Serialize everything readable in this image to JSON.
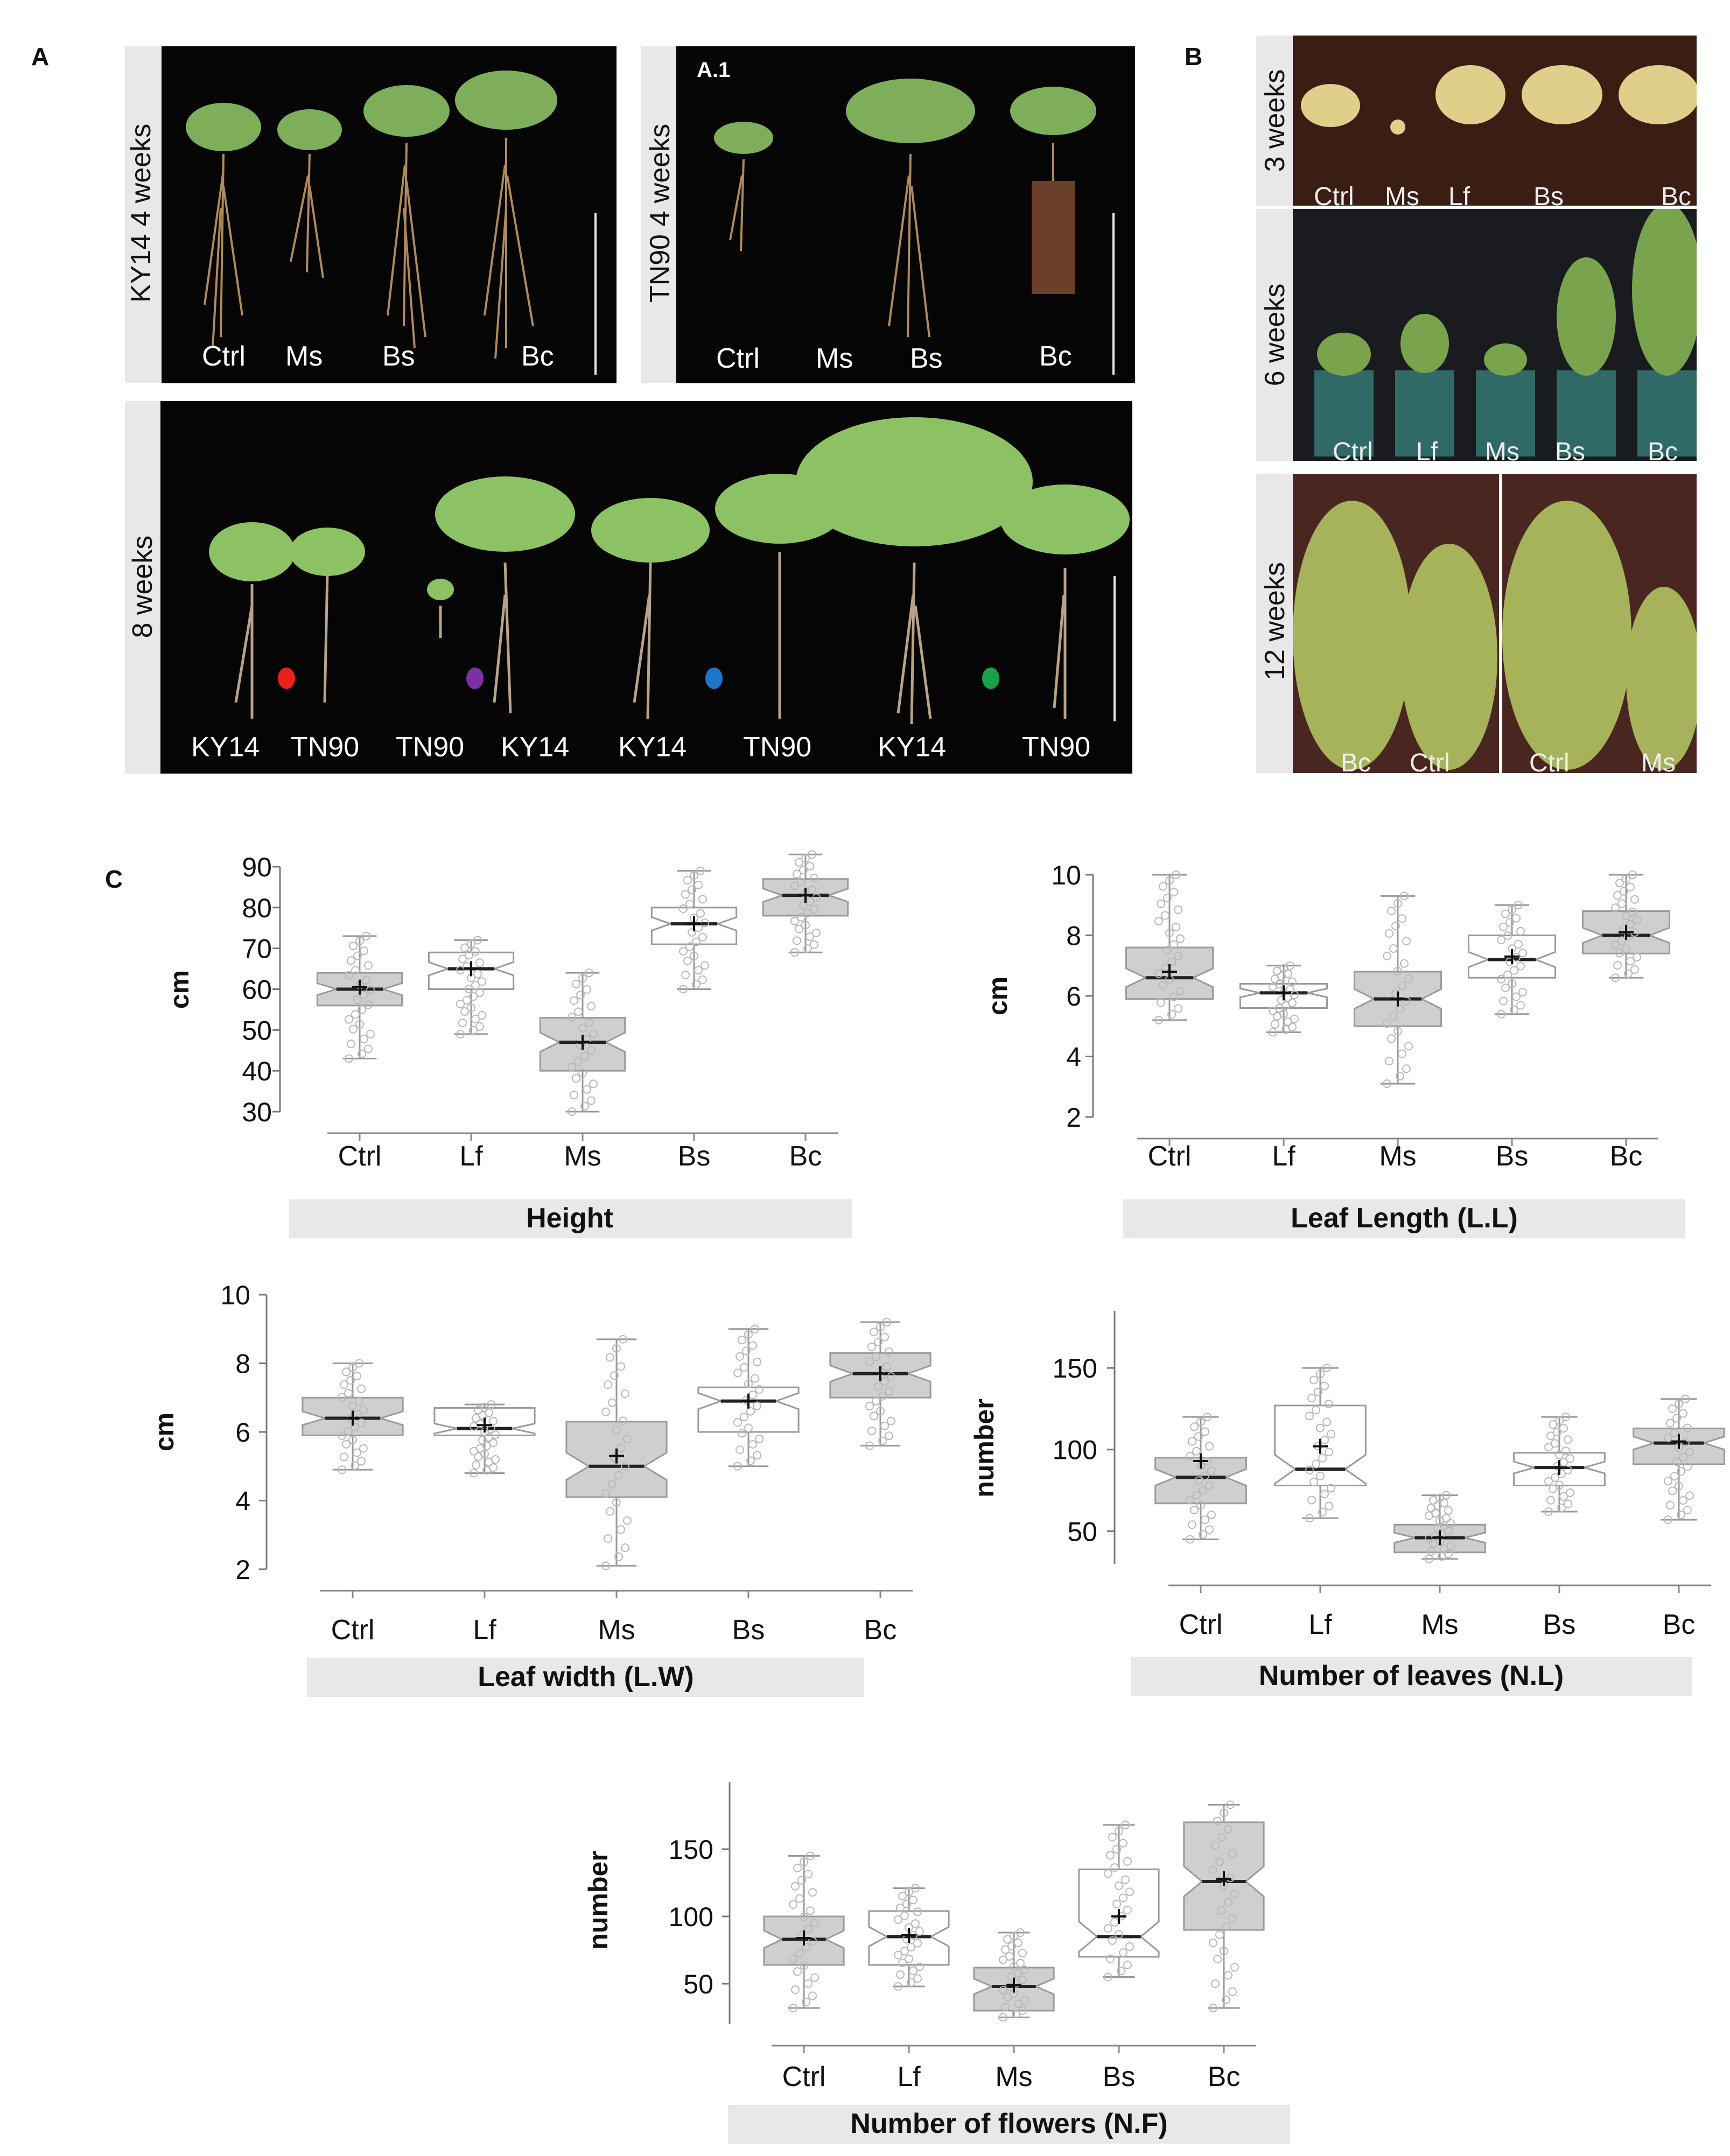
{
  "panelA": {
    "letter": "A",
    "ky14_label": "KY14  4 weeks",
    "ky14_plants": [
      "Ctrl",
      "Ms",
      "Bs",
      "Bc"
    ],
    "tn90_label": "TN90  4 weeks",
    "tn90_tag": "A.1",
    "tn90_plants": [
      "Ctrl",
      "Ms",
      "Bs",
      "Bc"
    ],
    "w8_label": "8 weeks",
    "w8_plants": [
      "KY14",
      "TN90",
      "TN90",
      "KY14",
      "KY14",
      "TN90",
      "KY14",
      "TN90"
    ],
    "dot_colors": [
      "#e8201c",
      "#7d2fa8",
      "#1f74c6",
      "#17a24a"
    ]
  },
  "panelB": {
    "letter": "B",
    "w3_label": "3 weeks",
    "w3_plants": [
      "Ctrl",
      "Ms",
      "Lf",
      "Bs",
      "Bc"
    ],
    "w6_label": "6 weeks",
    "w6_plants": [
      "Ctrl",
      "Lf",
      "Ms",
      "Bs",
      "Bc"
    ],
    "w12_label": "12 weeks",
    "w12_plants": [
      "Bc",
      "Ctrl",
      "Ctrl",
      "Ms"
    ]
  },
  "panelC": {
    "letter": "C"
  },
  "chart_data": [
    {
      "type": "boxplot",
      "title": "Height",
      "ylabel": "cm",
      "ylim": [
        30,
        90
      ],
      "yticks": [
        30,
        40,
        50,
        60,
        70,
        80,
        90
      ],
      "categories": [
        "Ctrl",
        "Lf",
        "Ms",
        "Bs",
        "Bc"
      ],
      "boxes": [
        {
          "q1": 56,
          "median": 60,
          "q3": 64,
          "min": 43,
          "max": 73,
          "mean": 60.5,
          "fill": "gray"
        },
        {
          "q1": 60,
          "median": 65,
          "q3": 69,
          "min": 49,
          "max": 72,
          "mean": 65,
          "fill": "white"
        },
        {
          "q1": 40,
          "median": 47,
          "q3": 53,
          "min": 30,
          "max": 64,
          "mean": 47,
          "fill": "gray"
        },
        {
          "q1": 71,
          "median": 76,
          "q3": 80,
          "min": 60,
          "max": 89,
          "mean": 76,
          "fill": "white"
        },
        {
          "q1": 78,
          "median": 83,
          "q3": 87,
          "min": 69,
          "max": 93,
          "mean": 83,
          "fill": "gray"
        }
      ]
    },
    {
      "type": "boxplot",
      "title": "Leaf Length (L.L)",
      "ylabel": "cm",
      "ylim": [
        2,
        10
      ],
      "yticks": [
        2,
        4,
        6,
        8,
        10
      ],
      "categories": [
        "Ctrl",
        "Lf",
        "Ms",
        "Bs",
        "Bc"
      ],
      "boxes": [
        {
          "q1": 5.9,
          "median": 6.6,
          "q3": 7.6,
          "min": 5.2,
          "max": 10,
          "mean": 6.8,
          "fill": "gray"
        },
        {
          "q1": 5.6,
          "median": 6.1,
          "q3": 6.4,
          "min": 4.8,
          "max": 7,
          "mean": 6.1,
          "fill": "white"
        },
        {
          "q1": 5.0,
          "median": 5.9,
          "q3": 6.8,
          "min": 3.1,
          "max": 9.3,
          "mean": 5.9,
          "fill": "gray"
        },
        {
          "q1": 6.6,
          "median": 7.2,
          "q3": 8.0,
          "min": 5.4,
          "max": 9.0,
          "mean": 7.3,
          "fill": "white"
        },
        {
          "q1": 7.4,
          "median": 8.0,
          "q3": 8.8,
          "min": 6.6,
          "max": 10,
          "mean": 8.1,
          "fill": "gray"
        }
      ]
    },
    {
      "type": "boxplot",
      "title": "Leaf width (L.W)",
      "ylabel": "cm",
      "ylim": [
        2,
        10
      ],
      "yticks": [
        2,
        4,
        6,
        8,
        10
      ],
      "categories": [
        "Ctrl",
        "Lf",
        "Ms",
        "Bs",
        "Bc"
      ],
      "boxes": [
        {
          "q1": 5.9,
          "median": 6.4,
          "q3": 7.0,
          "min": 4.9,
          "max": 8.0,
          "mean": 6.4,
          "fill": "gray"
        },
        {
          "q1": 5.9,
          "median": 6.1,
          "q3": 6.7,
          "min": 4.8,
          "max": 6.8,
          "mean": 6.2,
          "fill": "white"
        },
        {
          "q1": 4.1,
          "median": 5.0,
          "q3": 6.3,
          "min": 2.1,
          "max": 8.7,
          "mean": 5.3,
          "fill": "gray"
        },
        {
          "q1": 6.0,
          "median": 6.9,
          "q3": 7.3,
          "min": 5.0,
          "max": 9.0,
          "mean": 6.9,
          "fill": "white"
        },
        {
          "q1": 7.0,
          "median": 7.7,
          "q3": 8.3,
          "min": 5.6,
          "max": 9.2,
          "mean": 7.7,
          "fill": "gray"
        }
      ]
    },
    {
      "type": "boxplot",
      "title": "Number of leaves (N.L)",
      "ylabel": "number",
      "ylim": [
        30,
        185
      ],
      "yticks": [
        50,
        100,
        150
      ],
      "categories": [
        "Ctrl",
        "Lf",
        "Ms",
        "Bs",
        "Bc"
      ],
      "boxes": [
        {
          "q1": 67,
          "median": 83,
          "q3": 95,
          "min": 45,
          "max": 120,
          "mean": 93,
          "fill": "gray"
        },
        {
          "q1": 78,
          "median": 88,
          "q3": 127,
          "min": 58,
          "max": 150,
          "mean": 102,
          "fill": "white"
        },
        {
          "q1": 37,
          "median": 46,
          "q3": 54,
          "min": 33,
          "max": 72,
          "mean": 46,
          "fill": "gray"
        },
        {
          "q1": 78,
          "median": 89,
          "q3": 98,
          "min": 62,
          "max": 120,
          "mean": 89,
          "fill": "white"
        },
        {
          "q1": 91,
          "median": 104,
          "q3": 113,
          "min": 57,
          "max": 131,
          "mean": 105,
          "fill": "gray"
        }
      ]
    },
    {
      "type": "boxplot",
      "title": "Number of flowers (N.F)",
      "ylabel": "number",
      "ylim": [
        20,
        200
      ],
      "yticks": [
        50,
        100,
        150
      ],
      "categories": [
        "Ctrl",
        "Lf",
        "Ms",
        "Bs",
        "Bc"
      ],
      "boxes": [
        {
          "q1": 64,
          "median": 83,
          "q3": 100,
          "min": 32,
          "max": 145,
          "mean": 84,
          "fill": "gray"
        },
        {
          "q1": 64,
          "median": 85,
          "q3": 104,
          "min": 48,
          "max": 121,
          "mean": 86,
          "fill": "white"
        },
        {
          "q1": 30,
          "median": 48,
          "q3": 62,
          "min": 25,
          "max": 88,
          "mean": 49,
          "fill": "gray"
        },
        {
          "q1": 70,
          "median": 85,
          "q3": 135,
          "min": 55,
          "max": 168,
          "mean": 100,
          "fill": "white"
        },
        {
          "q1": 90,
          "median": 126,
          "q3": 170,
          "min": 32,
          "max": 183,
          "mean": 128,
          "fill": "gray"
        }
      ]
    }
  ]
}
